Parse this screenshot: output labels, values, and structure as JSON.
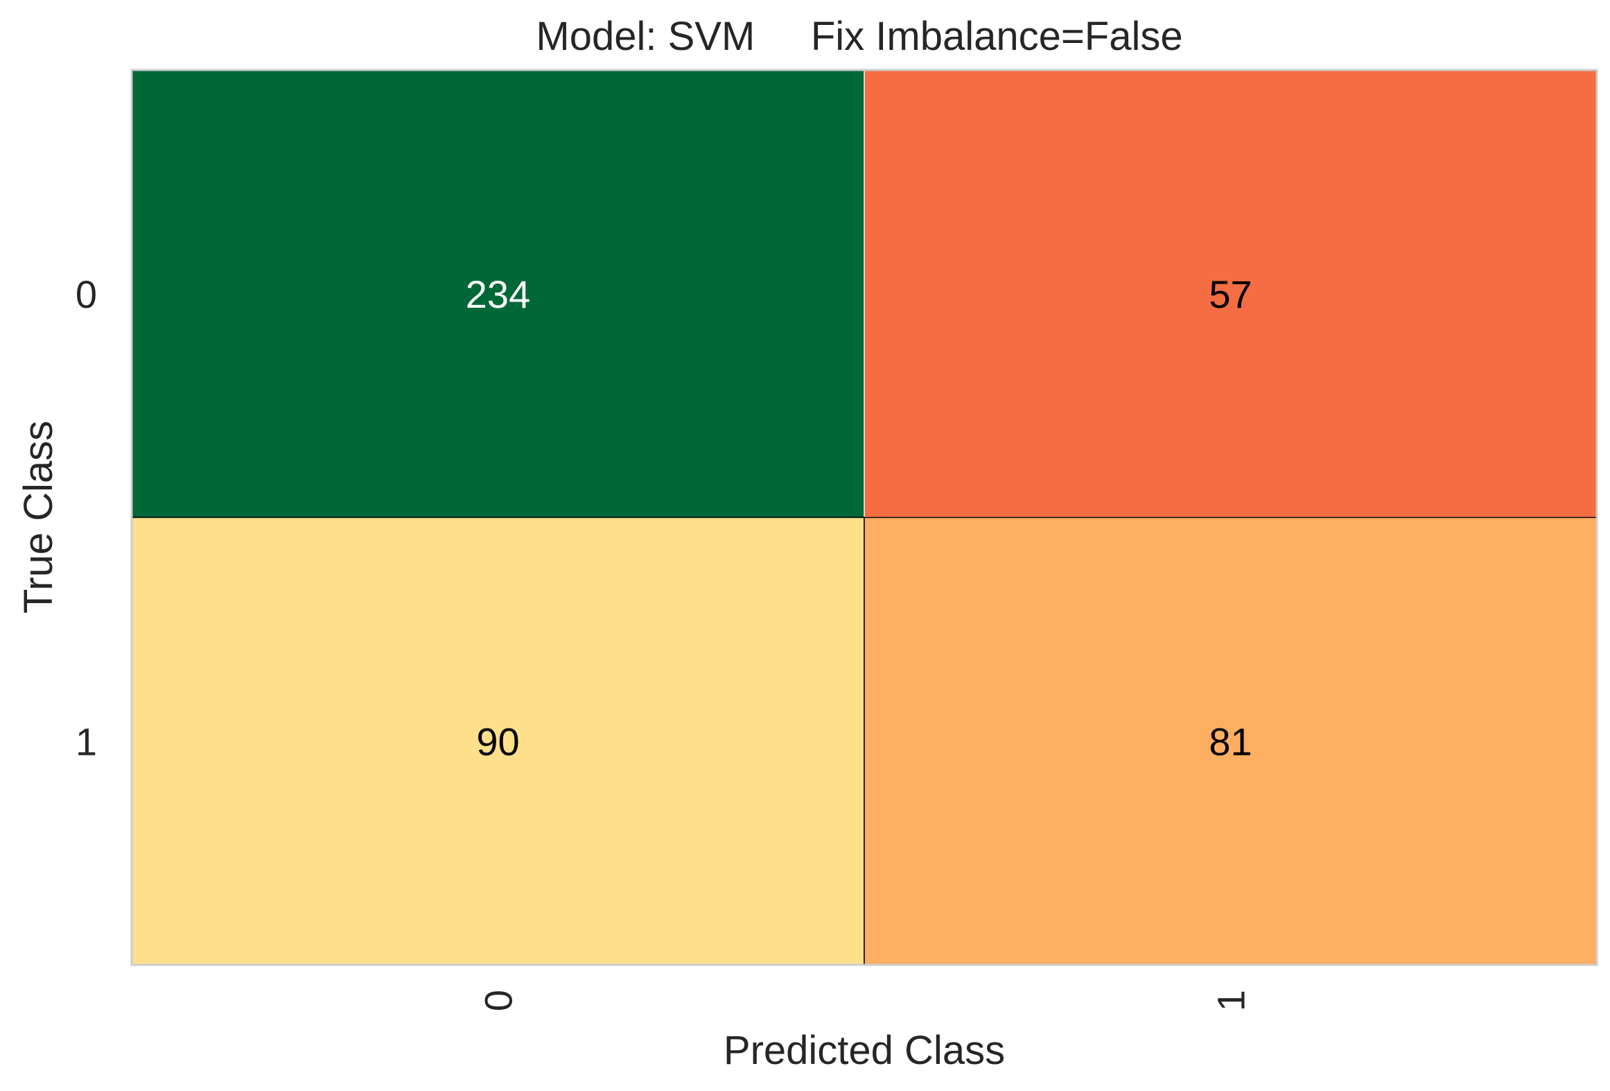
{
  "chart_data": {
    "type": "heatmap",
    "title": "Model: SVM     Fix Imbalance=False",
    "xlabel": "Predicted Class",
    "ylabel": "True Class",
    "x_categories": [
      "0",
      "1"
    ],
    "y_categories": [
      "0",
      "1"
    ],
    "values": [
      [
        234,
        57
      ],
      [
        90,
        81
      ]
    ],
    "colormap": "RdYlGn",
    "cell_colors": [
      [
        "#006837",
        "#f46d43"
      ],
      [
        "#fee08b",
        "#fdae61"
      ]
    ],
    "label_colors": [
      [
        "#ffffff",
        "#000000"
      ],
      [
        "#000000",
        "#000000"
      ]
    ],
    "grid": false,
    "legend": "none"
  }
}
